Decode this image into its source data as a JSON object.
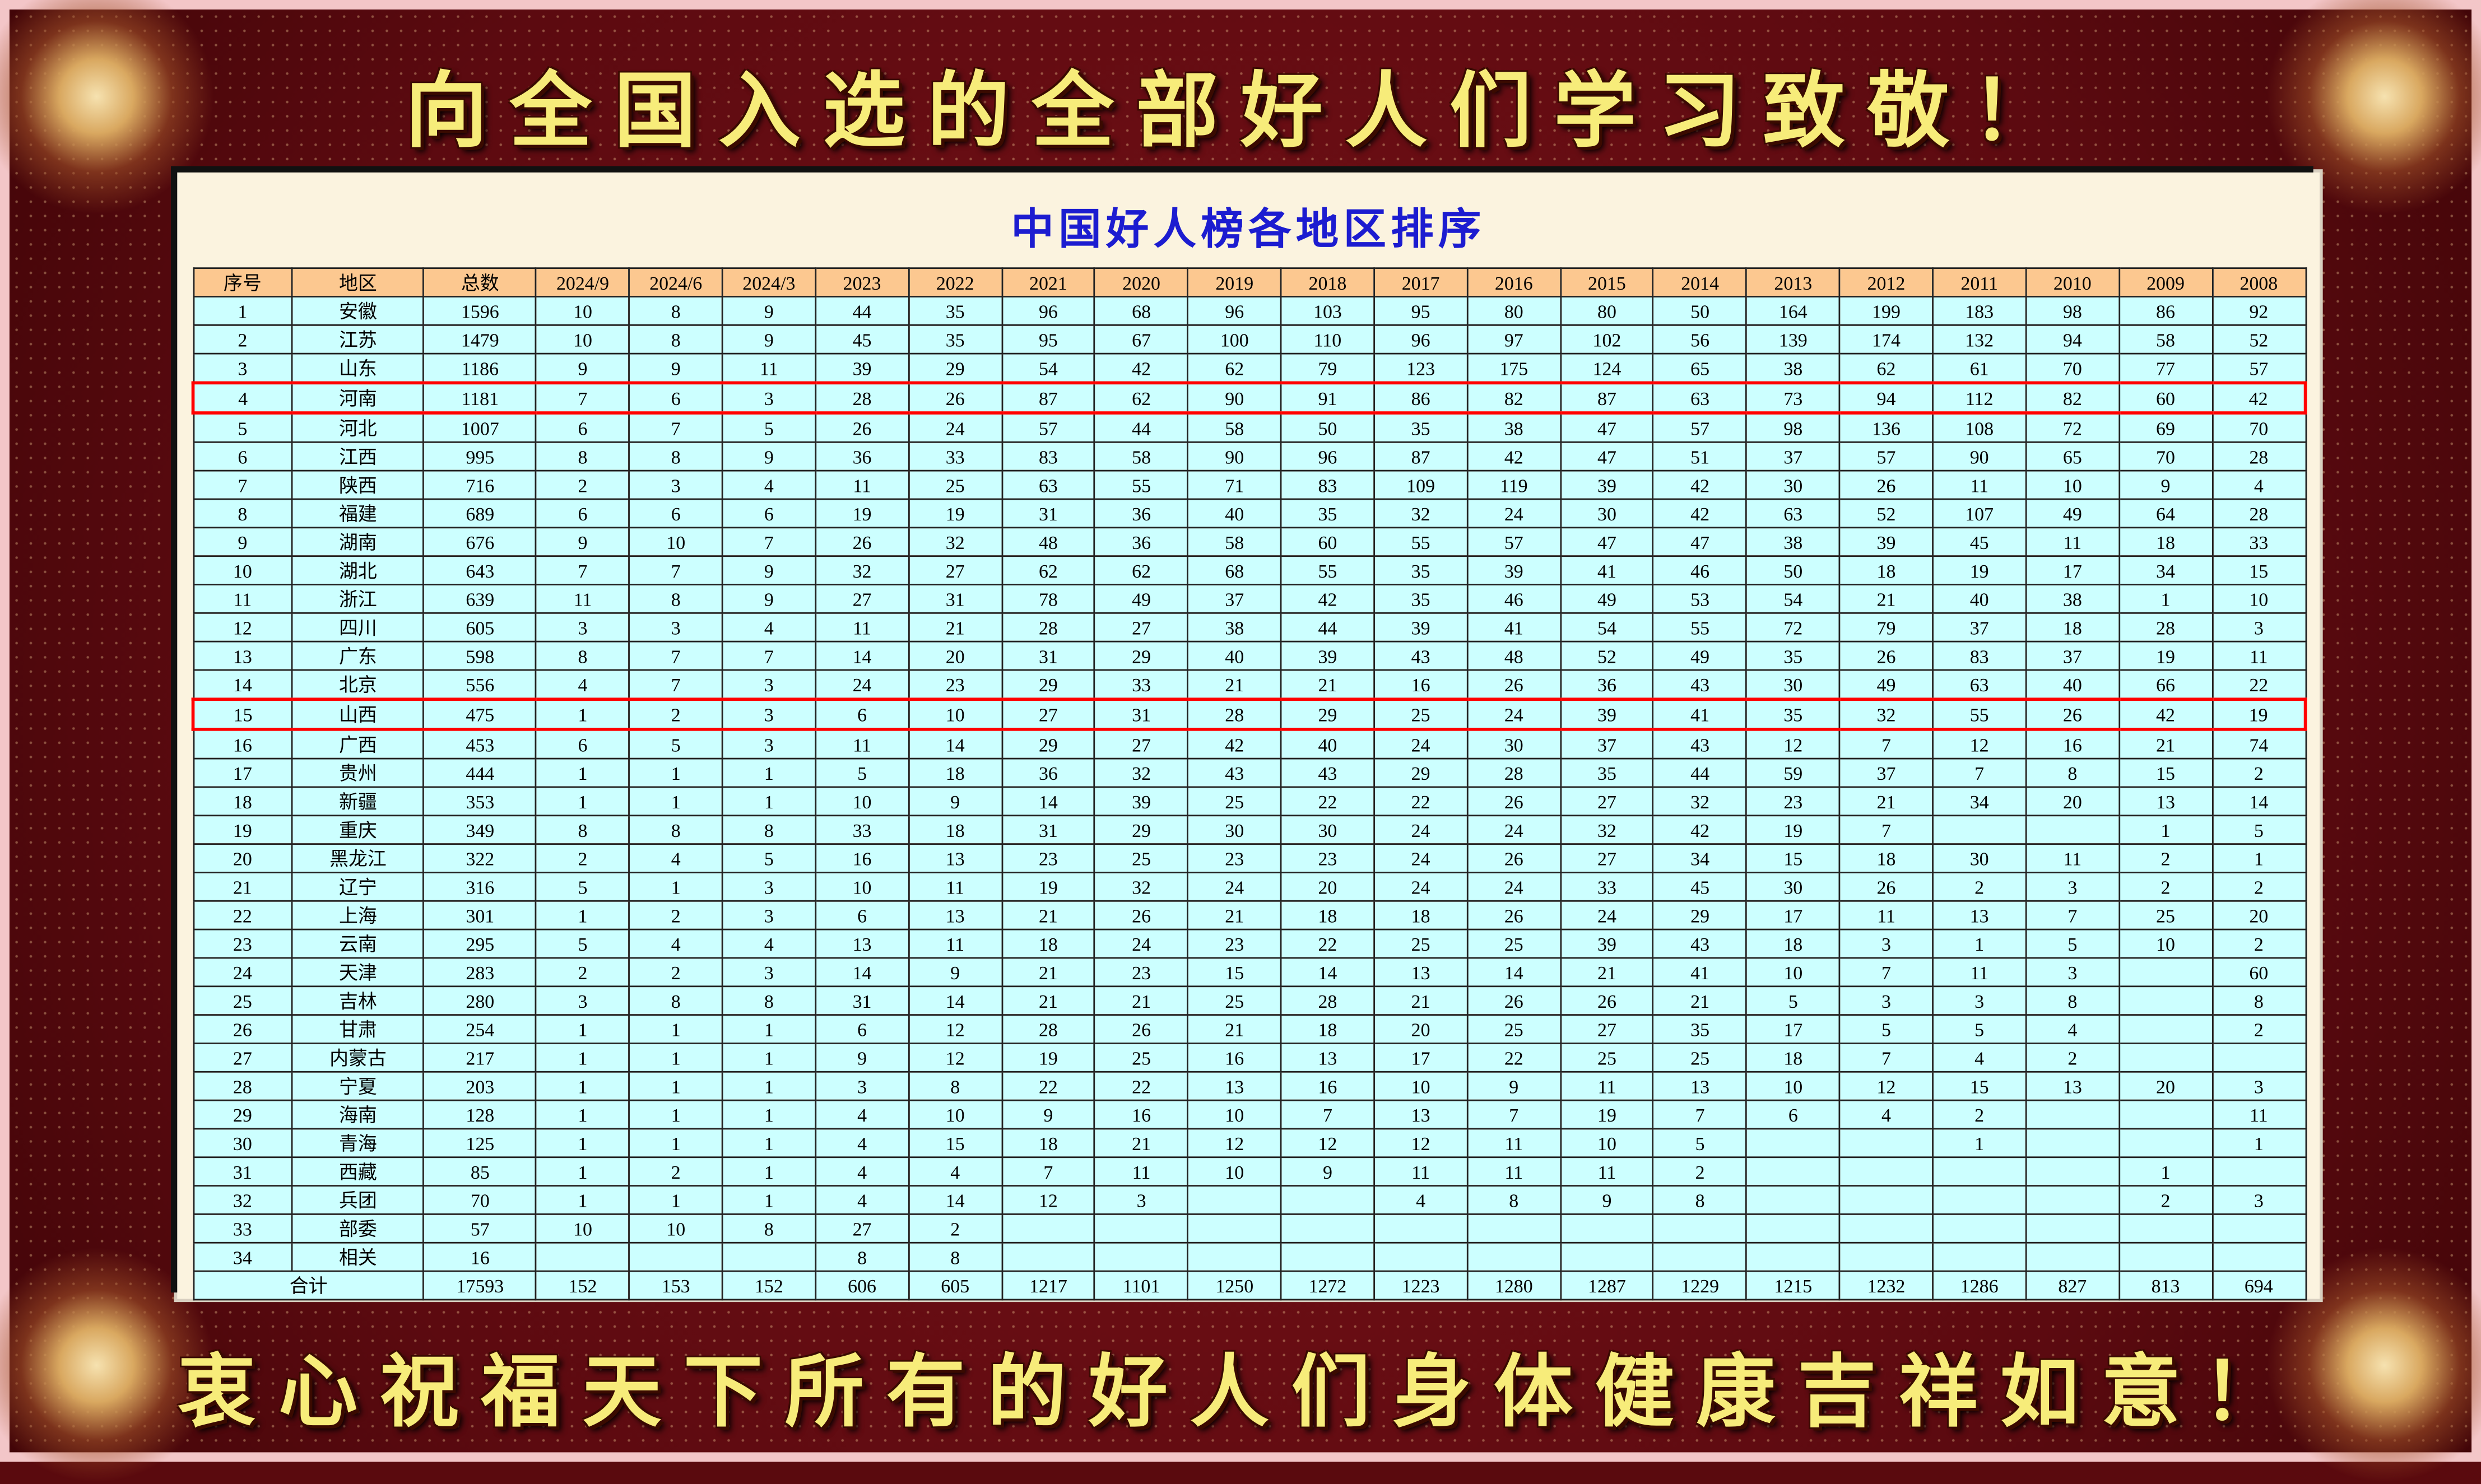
{
  "banner_top": "向全国入选的全部好人们学习致敬！",
  "banner_bottom": "衷心祝福天下所有的好人们身体健康吉祥如意！",
  "title": "中国好人榜各地区排序",
  "colors": {
    "header_bg": "#fcc890",
    "cell_bg": "#ccffff",
    "highlight_border": "#ff0000",
    "title": "#1c1cd0",
    "banner_text": "#f7ec7a",
    "frame": "#5c0a10"
  },
  "highlighted_rows": [
    "4",
    "15"
  ],
  "table": {
    "columns": [
      "序号",
      "地区",
      "总数",
      "2024/9",
      "2024/6",
      "2024/3",
      "2023",
      "2022",
      "2021",
      "2020",
      "2019",
      "2018",
      "2017",
      "2016",
      "2015",
      "2014",
      "2013",
      "2012",
      "2011",
      "2010",
      "2009",
      "2008"
    ],
    "rows": [
      [
        "1",
        "安徽",
        "1596",
        "10",
        "8",
        "9",
        "44",
        "35",
        "96",
        "68",
        "96",
        "103",
        "95",
        "80",
        "80",
        "50",
        "164",
        "199",
        "183",
        "98",
        "86",
        "92"
      ],
      [
        "2",
        "江苏",
        "1479",
        "10",
        "8",
        "9",
        "45",
        "35",
        "95",
        "67",
        "100",
        "110",
        "96",
        "97",
        "102",
        "56",
        "139",
        "174",
        "132",
        "94",
        "58",
        "52"
      ],
      [
        "3",
        "山东",
        "1186",
        "9",
        "9",
        "11",
        "39",
        "29",
        "54",
        "42",
        "62",
        "79",
        "123",
        "175",
        "124",
        "65",
        "38",
        "62",
        "61",
        "70",
        "77",
        "57"
      ],
      [
        "4",
        "河南",
        "1181",
        "7",
        "6",
        "3",
        "28",
        "26",
        "87",
        "62",
        "90",
        "91",
        "86",
        "82",
        "87",
        "63",
        "73",
        "94",
        "112",
        "82",
        "60",
        "42"
      ],
      [
        "5",
        "河北",
        "1007",
        "6",
        "7",
        "5",
        "26",
        "24",
        "57",
        "44",
        "58",
        "50",
        "35",
        "38",
        "47",
        "57",
        "98",
        "136",
        "108",
        "72",
        "69",
        "70"
      ],
      [
        "6",
        "江西",
        "995",
        "8",
        "8",
        "9",
        "36",
        "33",
        "83",
        "58",
        "90",
        "96",
        "87",
        "42",
        "47",
        "51",
        "37",
        "57",
        "90",
        "65",
        "70",
        "28"
      ],
      [
        "7",
        "陕西",
        "716",
        "2",
        "3",
        "4",
        "11",
        "25",
        "63",
        "55",
        "71",
        "83",
        "109",
        "119",
        "39",
        "42",
        "30",
        "26",
        "11",
        "10",
        "9",
        "4"
      ],
      [
        "8",
        "福建",
        "689",
        "6",
        "6",
        "6",
        "19",
        "19",
        "31",
        "36",
        "40",
        "35",
        "32",
        "24",
        "30",
        "42",
        "63",
        "52",
        "107",
        "49",
        "64",
        "28"
      ],
      [
        "9",
        "湖南",
        "676",
        "9",
        "10",
        "7",
        "26",
        "32",
        "48",
        "36",
        "58",
        "60",
        "55",
        "57",
        "47",
        "47",
        "38",
        "39",
        "45",
        "11",
        "18",
        "33"
      ],
      [
        "10",
        "湖北",
        "643",
        "7",
        "7",
        "9",
        "32",
        "27",
        "62",
        "62",
        "68",
        "55",
        "35",
        "39",
        "41",
        "46",
        "50",
        "18",
        "19",
        "17",
        "34",
        "15"
      ],
      [
        "11",
        "浙江",
        "639",
        "11",
        "8",
        "9",
        "27",
        "31",
        "78",
        "49",
        "37",
        "42",
        "35",
        "46",
        "49",
        "53",
        "54",
        "21",
        "40",
        "38",
        "1",
        "10"
      ],
      [
        "12",
        "四川",
        "605",
        "3",
        "3",
        "4",
        "11",
        "21",
        "28",
        "27",
        "38",
        "44",
        "39",
        "41",
        "54",
        "55",
        "72",
        "79",
        "37",
        "18",
        "28",
        "3"
      ],
      [
        "13",
        "广东",
        "598",
        "8",
        "7",
        "7",
        "14",
        "20",
        "31",
        "29",
        "40",
        "39",
        "43",
        "48",
        "52",
        "49",
        "35",
        "26",
        "83",
        "37",
        "19",
        "11"
      ],
      [
        "14",
        "北京",
        "556",
        "4",
        "7",
        "3",
        "24",
        "23",
        "29",
        "33",
        "21",
        "21",
        "16",
        "26",
        "36",
        "43",
        "30",
        "49",
        "63",
        "40",
        "66",
        "22"
      ],
      [
        "15",
        "山西",
        "475",
        "1",
        "2",
        "3",
        "6",
        "10",
        "27",
        "31",
        "28",
        "29",
        "25",
        "24",
        "39",
        "41",
        "35",
        "32",
        "55",
        "26",
        "42",
        "19"
      ],
      [
        "16",
        "广西",
        "453",
        "6",
        "5",
        "3",
        "11",
        "14",
        "29",
        "27",
        "42",
        "40",
        "24",
        "30",
        "37",
        "43",
        "12",
        "7",
        "12",
        "16",
        "21",
        "74"
      ],
      [
        "17",
        "贵州",
        "444",
        "1",
        "1",
        "1",
        "5",
        "18",
        "36",
        "32",
        "43",
        "43",
        "29",
        "28",
        "35",
        "44",
        "59",
        "37",
        "7",
        "8",
        "15",
        "2"
      ],
      [
        "18",
        "新疆",
        "353",
        "1",
        "1",
        "1",
        "10",
        "9",
        "14",
        "39",
        "25",
        "22",
        "22",
        "26",
        "27",
        "32",
        "23",
        "21",
        "34",
        "20",
        "13",
        "14"
      ],
      [
        "19",
        "重庆",
        "349",
        "8",
        "8",
        "8",
        "33",
        "18",
        "31",
        "29",
        "30",
        "30",
        "24",
        "24",
        "32",
        "42",
        "19",
        "7",
        "",
        "",
        "1",
        "5"
      ],
      [
        "20",
        "黑龙江",
        "322",
        "2",
        "4",
        "5",
        "16",
        "13",
        "23",
        "25",
        "23",
        "23",
        "24",
        "26",
        "27",
        "34",
        "15",
        "18",
        "30",
        "11",
        "2",
        "1"
      ],
      [
        "21",
        "辽宁",
        "316",
        "5",
        "1",
        "3",
        "10",
        "11",
        "19",
        "32",
        "24",
        "20",
        "24",
        "24",
        "33",
        "45",
        "30",
        "26",
        "2",
        "3",
        "2",
        "2"
      ],
      [
        "22",
        "上海",
        "301",
        "1",
        "2",
        "3",
        "6",
        "13",
        "21",
        "26",
        "21",
        "18",
        "18",
        "26",
        "24",
        "29",
        "17",
        "11",
        "13",
        "7",
        "25",
        "20"
      ],
      [
        "23",
        "云南",
        "295",
        "5",
        "4",
        "4",
        "13",
        "11",
        "18",
        "24",
        "23",
        "22",
        "25",
        "25",
        "39",
        "43",
        "18",
        "3",
        "1",
        "5",
        "10",
        "2"
      ],
      [
        "24",
        "天津",
        "283",
        "2",
        "2",
        "3",
        "14",
        "9",
        "21",
        "23",
        "15",
        "14",
        "13",
        "14",
        "21",
        "41",
        "10",
        "7",
        "11",
        "3",
        "",
        "60"
      ],
      [
        "25",
        "吉林",
        "280",
        "3",
        "8",
        "8",
        "31",
        "14",
        "21",
        "21",
        "25",
        "28",
        "21",
        "26",
        "26",
        "21",
        "5",
        "3",
        "3",
        "8",
        "",
        "8"
      ],
      [
        "26",
        "甘肃",
        "254",
        "1",
        "1",
        "1",
        "6",
        "12",
        "28",
        "26",
        "21",
        "18",
        "20",
        "25",
        "27",
        "35",
        "17",
        "5",
        "5",
        "4",
        "",
        "2"
      ],
      [
        "27",
        "内蒙古",
        "217",
        "1",
        "1",
        "1",
        "9",
        "12",
        "19",
        "25",
        "16",
        "13",
        "17",
        "22",
        "25",
        "25",
        "18",
        "7",
        "4",
        "2",
        "",
        ""
      ],
      [
        "28",
        "宁夏",
        "203",
        "1",
        "1",
        "1",
        "3",
        "8",
        "22",
        "22",
        "13",
        "16",
        "10",
        "9",
        "11",
        "13",
        "10",
        "12",
        "15",
        "13",
        "20",
        "3"
      ],
      [
        "29",
        "海南",
        "128",
        "1",
        "1",
        "1",
        "4",
        "10",
        "9",
        "16",
        "10",
        "7",
        "13",
        "7",
        "19",
        "7",
        "6",
        "4",
        "2",
        "",
        "",
        "11"
      ],
      [
        "30",
        "青海",
        "125",
        "1",
        "1",
        "1",
        "4",
        "15",
        "18",
        "21",
        "12",
        "12",
        "12",
        "11",
        "10",
        "5",
        "",
        "",
        "1",
        "",
        "",
        "1"
      ],
      [
        "31",
        "西藏",
        "85",
        "1",
        "2",
        "1",
        "4",
        "4",
        "7",
        "11",
        "10",
        "9",
        "11",
        "11",
        "11",
        "2",
        "",
        "",
        "",
        "",
        "1",
        ""
      ],
      [
        "32",
        "兵团",
        "70",
        "1",
        "1",
        "1",
        "4",
        "14",
        "12",
        "3",
        "",
        "",
        "4",
        "8",
        "9",
        "8",
        "",
        "",
        "",
        "",
        "2",
        "3"
      ],
      [
        "33",
        "部委",
        "57",
        "10",
        "10",
        "8",
        "27",
        "2",
        "",
        "",
        "",
        "",
        "",
        "",
        "",
        "",
        "",
        "",
        "",
        "",
        "",
        ""
      ],
      [
        "34",
        "相关",
        "16",
        "",
        "",
        "",
        "8",
        "8",
        "",
        "",
        "",
        "",
        "",
        "",
        "",
        "",
        "",
        "",
        "",
        "",
        "",
        ""
      ]
    ],
    "total_label": "合计",
    "totals": [
      "17593",
      "152",
      "153",
      "152",
      "606",
      "605",
      "1217",
      "1101",
      "1250",
      "1272",
      "1223",
      "1280",
      "1287",
      "1229",
      "1215",
      "1232",
      "1286",
      "827",
      "813",
      "694"
    ]
  }
}
